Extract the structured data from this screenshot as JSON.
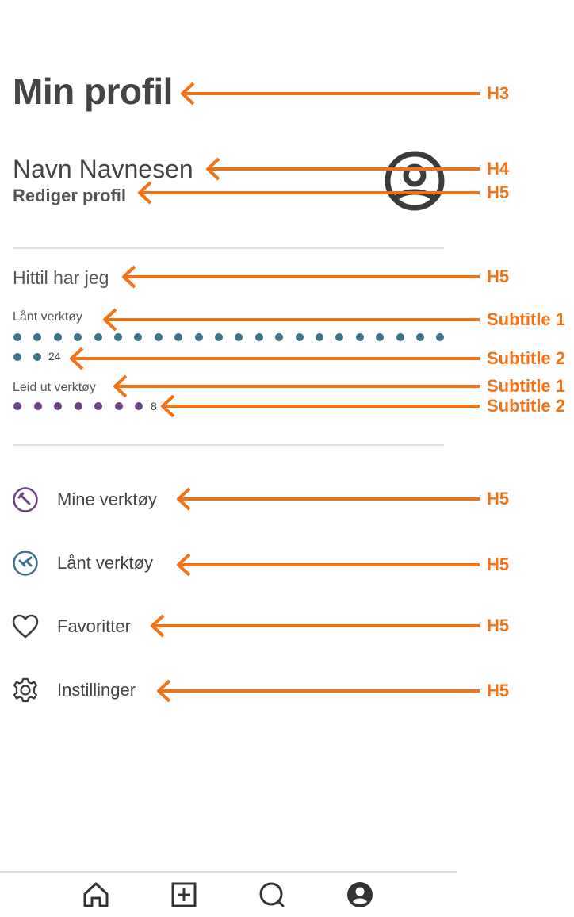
{
  "page": {
    "title": "Min profil"
  },
  "profile": {
    "name": "Navn Navnesen",
    "edit_label": "Rediger profil"
  },
  "stats": {
    "heading": "Hittil har jeg",
    "borrowed": {
      "label": "Lånt verktøy",
      "count": "24",
      "color": "#3d7287"
    },
    "lent": {
      "label": "Leid ut verktøy",
      "count": "8",
      "color": "#6a4383"
    }
  },
  "menu": {
    "items": [
      {
        "label": "Mine verktøy",
        "icon": "tool-circle-icon"
      },
      {
        "label": "Lånt verktøy",
        "icon": "borrowed-tool-icon"
      },
      {
        "label": "Favoritter",
        "icon": "heart-icon"
      },
      {
        "label": "Instillinger",
        "icon": "gear-icon"
      }
    ]
  },
  "bottom_nav": {
    "tabs": [
      "home-icon",
      "add-icon",
      "search-icon",
      "profile-icon"
    ]
  },
  "annotations": {
    "color": "#f47216",
    "labels": [
      "H3",
      "H4",
      "H5",
      "H5",
      "Subtitle 1",
      "Subtitle 2",
      "Subtitle 1",
      "Subtitle 2",
      "H5",
      "H5",
      "H5",
      "H5"
    ]
  }
}
